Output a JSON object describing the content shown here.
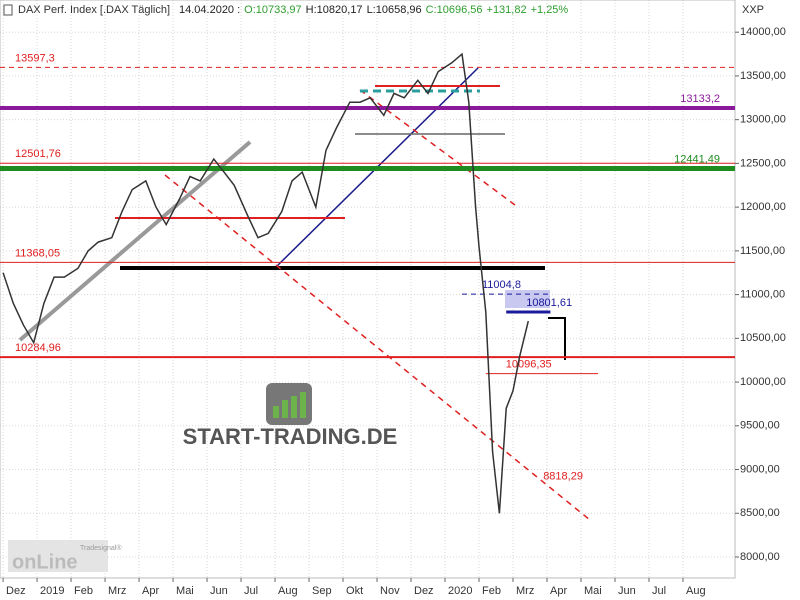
{
  "header": {
    "symbol": "DAX Perf. Index [.DAX  Täglich]",
    "date": "14.04.2020 :",
    "items": [
      "O:10733,97",
      "H:10820,17",
      "L:10658,96",
      "C:10696,56",
      "+131,82",
      "+1,25%"
    ],
    "item_colors": [
      "#2e9e2e",
      "#222222",
      "#222222",
      "#2e9e2e",
      "#2e9e2e",
      "#2e9e2e"
    ]
  },
  "chart_data": {
    "type": "line",
    "axis_unit": "XXP",
    "x": [
      0.0,
      0.3,
      0.6,
      0.9,
      1.2,
      1.5,
      1.8,
      2.2,
      2.5,
      2.8,
      3.2,
      3.5,
      3.8,
      4.2,
      4.5,
      4.8,
      5.2,
      5.5,
      5.8,
      6.2,
      6.5,
      6.8,
      7.2,
      7.5,
      7.8,
      8.2,
      8.5,
      8.8,
      9.2,
      9.5,
      9.8,
      10.2,
      10.5,
      10.8,
      11.2,
      11.5,
      11.8,
      12.2,
      12.5,
      12.8,
      13.2,
      13.5,
      13.7,
      13.9,
      14.0,
      14.2,
      14.4,
      14.6,
      14.8,
      15.0,
      15.2,
      15.45
    ],
    "series": [
      {
        "name": "DAX",
        "color": "#333333",
        "values": [
          11250,
          10900,
          10650,
          10450,
          10900,
          11200,
          11200,
          11300,
          11500,
          11600,
          11650,
          11950,
          12200,
          12300,
          12000,
          11800,
          12100,
          12350,
          12300,
          12550,
          12400,
          12250,
          11900,
          11650,
          11700,
          11950,
          12300,
          12400,
          12000,
          12650,
          12900,
          13200,
          13200,
          13250,
          13050,
          13300,
          13250,
          13450,
          13300,
          13550,
          13650,
          13750,
          13200,
          12000,
          11550,
          10800,
          9200,
          8500,
          9700,
          9900,
          10300,
          10696.56
        ]
      }
    ],
    "xlim": [
      -0.09,
      21.53
    ],
    "xticks": [
      {
        "value": 0,
        "label": "Dez"
      },
      {
        "value": 1,
        "label": "2019"
      },
      {
        "value": 2,
        "label": "Feb"
      },
      {
        "value": 3,
        "label": "Mrz"
      },
      {
        "value": 4,
        "label": "Apr"
      },
      {
        "value": 5,
        "label": "Mai"
      },
      {
        "value": 6,
        "label": "Jun"
      },
      {
        "value": 7,
        "label": "Jul"
      },
      {
        "value": 8,
        "label": "Aug"
      },
      {
        "value": 9,
        "label": "Sep"
      },
      {
        "value": 10,
        "label": "Okt"
      },
      {
        "value": 11,
        "label": "Nov"
      },
      {
        "value": 12,
        "label": "Dez"
      },
      {
        "value": 13,
        "label": "2020"
      },
      {
        "value": 14,
        "label": "Feb"
      },
      {
        "value": 15,
        "label": "Mrz"
      },
      {
        "value": 16,
        "label": "Apr"
      },
      {
        "value": 17,
        "label": "Mai"
      },
      {
        "value": 18,
        "label": "Jun"
      },
      {
        "value": 19,
        "label": "Jul"
      },
      {
        "value": 20,
        "label": "Aug"
      }
    ],
    "ylim": [
      7760,
      14368
    ],
    "yticks": [
      {
        "value": 8000,
        "label": "8000,00"
      },
      {
        "value": 8500,
        "label": "8500,00"
      },
      {
        "value": 9000,
        "label": "9000,00"
      },
      {
        "value": 9500,
        "label": "9500,00"
      },
      {
        "value": 10000,
        "label": "10000,00"
      },
      {
        "value": 10500,
        "label": "10500,00"
      },
      {
        "value": 11000,
        "label": "11000,00"
      },
      {
        "value": 11500,
        "label": "11500,00"
      },
      {
        "value": 12000,
        "label": "12000,00"
      },
      {
        "value": 12500,
        "label": "12500,00"
      },
      {
        "value": 13000,
        "label": "13000,00"
      },
      {
        "value": 13500,
        "label": "13500,00"
      },
      {
        "value": 14000,
        "label": "14000,00"
      }
    ],
    "levels": [
      {
        "value": 13597.3,
        "label": "13597,3",
        "color": "#e02020",
        "style": "dashed",
        "width": 1,
        "side": "left"
      },
      {
        "value": 13133.2,
        "label": "13133,2",
        "color": "#8b1a9b",
        "style": "solid",
        "width": 4,
        "side": "right"
      },
      {
        "value": 12501.76,
        "label": "12501,76",
        "color": "#e02020",
        "style": "solid",
        "width": 1,
        "side": "left"
      },
      {
        "value": 12441.49,
        "label": "12441,49",
        "color": "#1e8c1e",
        "style": "solid",
        "width": 5,
        "side": "right"
      },
      {
        "value": 11368.05,
        "label": "11368,05",
        "color": "#e02020",
        "style": "solid",
        "width": 1,
        "side": "left"
      },
      {
        "value": 10284.96,
        "label": "10284,96",
        "color": "#e02020",
        "style": "solid",
        "width": 2,
        "side": "left"
      },
      {
        "value": 11004.8,
        "label": "11004,8",
        "color": "#1a1a9b",
        "style": "dashed",
        "width": 1,
        "side": "span",
        "span": [
          13.5,
          16.1
        ]
      },
      {
        "value": 10801.61,
        "label": "10801,61",
        "color": "#1a1a9b",
        "style": "solid",
        "width": 3,
        "side": "span",
        "span": [
          14.8,
          16.1
        ]
      },
      {
        "value": 10096.35,
        "label": "10096,35",
        "color": "#e02020",
        "style": "solid",
        "width": 1,
        "side": "span",
        "span": [
          14.2,
          17.5
        ]
      },
      {
        "value": 8818.29,
        "label": "8818,29",
        "color": "#e02020",
        "style": "none",
        "width": 0,
        "side": "span",
        "span": [
          15.3,
          16.5
        ]
      }
    ],
    "grid": true
  },
  "watermark": {
    "brand": "START-TRADING.DE",
    "logo_small": "Tradesignal®",
    "logo_big": "onLine"
  }
}
